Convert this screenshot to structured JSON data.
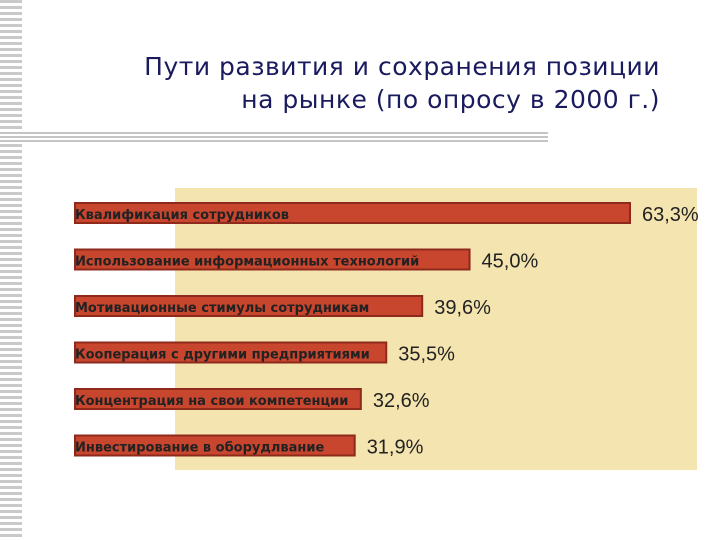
{
  "title_lines": [
    "Пути развития и сохранения позиции",
    "на рынке (по опросу в 2000 г.)"
  ],
  "colors": {
    "bar": "#c8452e",
    "bar_edge": "#8e2a1c",
    "background": "#f4e4b0",
    "text": "#222222",
    "title": "#1a1a5e"
  },
  "chart_data": {
    "type": "bar",
    "orientation": "horizontal",
    "title": "Пути развития и сохранения позиции на рынке (по опросу в 2000 г.)",
    "categories": [
      "Квалификация сотрудников",
      "Использование информационных технологий",
      "Мотивационные стимулы сотрудникам",
      "Кооперация с другими предприятиями",
      "Концентрация на свои компетенции",
      "Инвестирование в оборудлвание"
    ],
    "values": [
      63.3,
      45.0,
      39.6,
      35.5,
      32.6,
      31.9
    ],
    "value_labels": [
      "63,3%",
      "45,0%",
      "39,6%",
      "35,5%",
      "32,6%",
      "31,9%"
    ],
    "unit": "%",
    "xlim": [
      0,
      63.3
    ],
    "grid": false,
    "legend": "none"
  }
}
